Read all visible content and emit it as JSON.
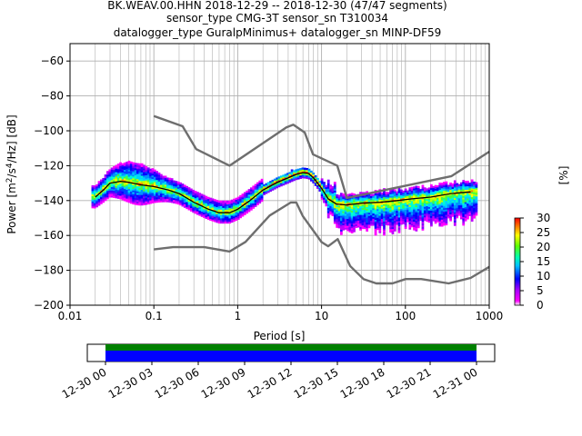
{
  "title": {
    "line1": "BK.WEAV.00.HHN   2018-12-29 -- 2018-12-30  (47/47 segments)",
    "line2": "sensor_type CMG-3T sensor_sn T310034",
    "line3": "datalogger_type GuralpMinimus+ datalogger_sn MINP-DF59"
  },
  "colors": {
    "model_curves": "#6e6e6e",
    "mean_curve": "#000000",
    "grid": "#b0b0b0",
    "coverage_data": "#0000ff",
    "coverage_top": "#008000"
  },
  "chart_data": [
    {
      "type": "heatmap",
      "description_kind": "probabilistic power spectral density",
      "xlabel": "Period [s]",
      "ylabel": "Power [m$^2$/s$^4$/Hz] [dB]",
      "x_scale": "log",
      "xlim": [
        0.01,
        1000
      ],
      "ylim": [
        -200,
        -50
      ],
      "xticks": [
        "0.01",
        "0.1",
        "1",
        "10",
        "100",
        "1000"
      ],
      "yticks": [
        "−60",
        "−80",
        "−100",
        "−120",
        "−140",
        "−160",
        "−180",
        "−200"
      ],
      "ytick_values": [
        -60,
        -80,
        -100,
        -120,
        -140,
        -160,
        -180,
        -200
      ],
      "grid": true,
      "colorbar": {
        "label": "[%]",
        "ticks": [
          "0",
          "5",
          "10",
          "15",
          "20",
          "25",
          "30"
        ],
        "range": [
          0,
          30
        ]
      },
      "noise_model_high": {
        "x": [
          0.1,
          0.22,
          0.32,
          0.8,
          3.8,
          4.6,
          6.3,
          7.9,
          15.4,
          20,
          354.8,
          1000
        ],
        "y": [
          -91.5,
          -97.4,
          -110.5,
          -120,
          -98,
          -96.5,
          -101,
          -113.5,
          -120,
          -138.5,
          -126,
          -112
        ]
      },
      "noise_model_low": {
        "x": [
          0.1,
          0.17,
          0.4,
          0.8,
          1.24,
          2.4,
          4.3,
          5,
          6,
          10,
          12,
          15.6,
          21.9,
          31.6,
          45,
          70,
          101,
          154,
          328,
          600,
          1000
        ],
        "y": [
          -168,
          -166.7,
          -166.7,
          -169.2,
          -163.7,
          -148.6,
          -141.1,
          -141.1,
          -149,
          -163.8,
          -166.2,
          -162.1,
          -177.5,
          -185,
          -187.5,
          -187.5,
          -185,
          -185,
          -187.5,
          -184.4,
          -178
        ]
      },
      "mean_curve": {
        "x": [
          0.02,
          0.025,
          0.03,
          0.04,
          0.05,
          0.07,
          0.1,
          0.15,
          0.2,
          0.3,
          0.45,
          0.6,
          0.8,
          1.0,
          1.4,
          2,
          3,
          4,
          5,
          6,
          7,
          8,
          10,
          12,
          15,
          20,
          30,
          50,
          80,
          120,
          200,
          350,
          600
        ],
        "y": [
          -138,
          -134,
          -130,
          -129,
          -129.5,
          -131,
          -132,
          -134,
          -136,
          -141,
          -145,
          -147,
          -147,
          -145,
          -140,
          -134,
          -129.5,
          -127,
          -125,
          -124,
          -124.5,
          -127,
          -133,
          -139,
          -142,
          -142.5,
          -141.5,
          -141,
          -140,
          -139,
          -138,
          -136,
          -135
        ]
      },
      "coverage": {
        "xticks": [
          "12-30 00",
          "12-30 03",
          "12-30 06",
          "12-30 09",
          "12-30 12",
          "12-30 15",
          "12-30 18",
          "12-30 21",
          "12-31 00"
        ]
      }
    }
  ]
}
